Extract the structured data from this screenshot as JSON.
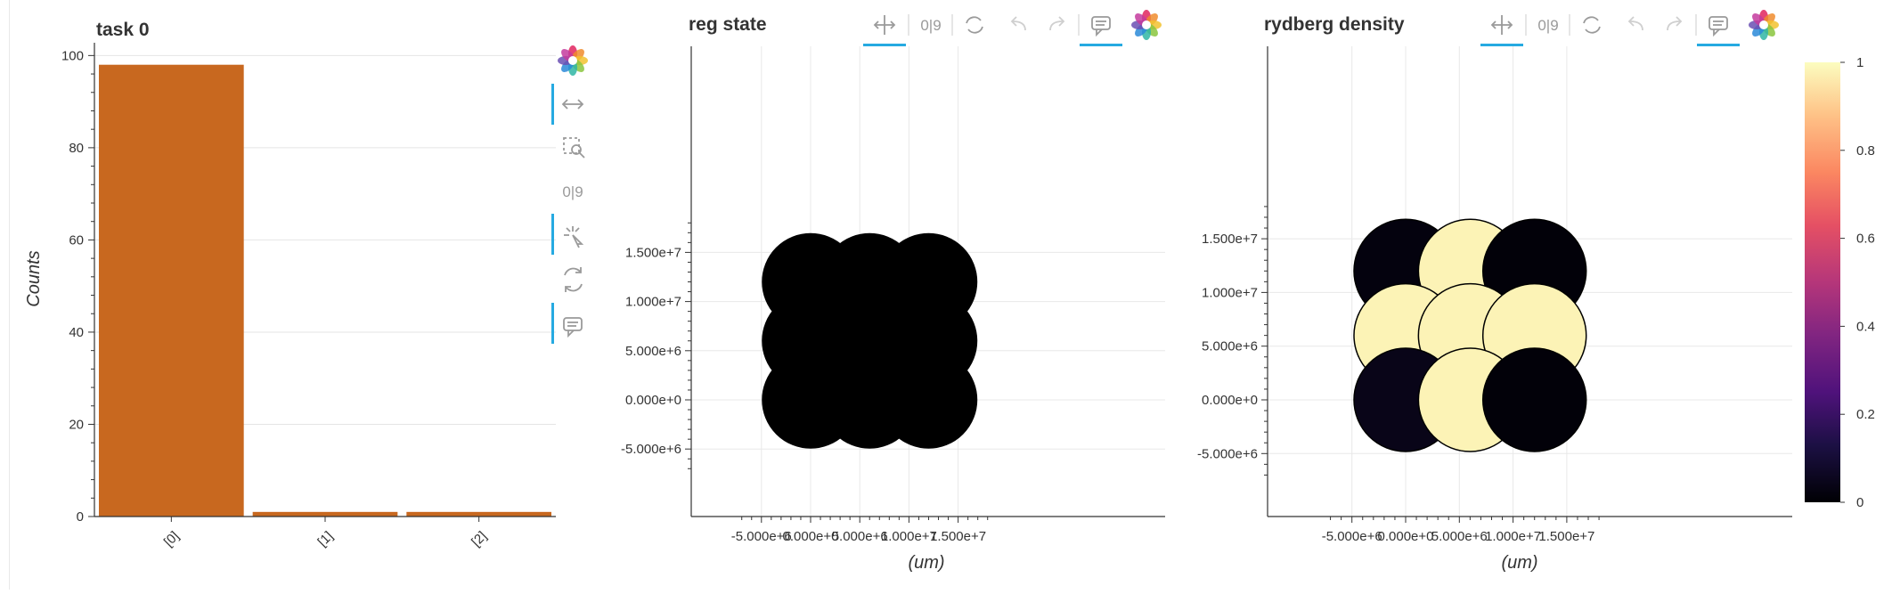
{
  "chart_data": [
    {
      "type": "bar",
      "title": "task 0",
      "ylabel": "Counts",
      "categories": [
        "[0]",
        "[1]",
        "[2]"
      ],
      "values": [
        98,
        1,
        1
      ],
      "ylim": [
        0,
        102
      ],
      "yticks": [
        "0",
        "20",
        "40",
        "60",
        "80",
        "100"
      ],
      "bar_color": "#c8681f",
      "grid": true
    },
    {
      "type": "scatter",
      "title": "reg state",
      "xlabel": "(um)",
      "xticks": [
        "-5.000e+6",
        "0.000e+0",
        "5.000e+6",
        "1.000e+7",
        "1.500e+7"
      ],
      "yticks": [
        "-5.000e+6",
        "0.000e+0",
        "5.000e+6",
        "1.000e+7",
        "1.500e+7"
      ],
      "xlim": [
        -5000000,
        17500000
      ],
      "ylim": [
        -5000000,
        17500000
      ],
      "points": [
        {
          "x": 0,
          "y": 12000000,
          "value": 0
        },
        {
          "x": 6000000,
          "y": 12000000,
          "value": 0
        },
        {
          "x": 12000000,
          "y": 12000000,
          "value": 0
        },
        {
          "x": 0,
          "y": 6000000,
          "value": 0
        },
        {
          "x": 6000000,
          "y": 6000000,
          "value": 0
        },
        {
          "x": 12000000,
          "y": 6000000,
          "value": 0
        },
        {
          "x": 0,
          "y": 0,
          "value": 0
        },
        {
          "x": 6000000,
          "y": 0,
          "value": 0
        },
        {
          "x": 12000000,
          "y": 0,
          "value": 0
        }
      ],
      "point_color": "#000000",
      "grid": true
    },
    {
      "type": "scatter",
      "title": "rydberg density",
      "xlabel": "(um)",
      "xticks": [
        "-5.000e+6",
        "0.000e+0",
        "5.000e+6",
        "1.000e+7",
        "1.500e+7"
      ],
      "yticks": [
        "-5.000e+6",
        "0.000e+0",
        "5.000e+6",
        "1.000e+7",
        "1.500e+7"
      ],
      "xlim": [
        -5000000,
        17500000
      ],
      "ylim": [
        -5000000,
        17500000
      ],
      "points": [
        {
          "x": 0,
          "y": 12000000,
          "value": 0.02
        },
        {
          "x": 6000000,
          "y": 12000000,
          "value": 0.98
        },
        {
          "x": 12000000,
          "y": 12000000,
          "value": 0.01
        },
        {
          "x": 0,
          "y": 6000000,
          "value": 0.98
        },
        {
          "x": 6000000,
          "y": 6000000,
          "value": 0.98
        },
        {
          "x": 12000000,
          "y": 6000000,
          "value": 0.98
        },
        {
          "x": 0,
          "y": 0,
          "value": 0.04
        },
        {
          "x": 6000000,
          "y": 0,
          "value": 0.98
        },
        {
          "x": 12000000,
          "y": 0,
          "value": 0.01
        }
      ],
      "colormap": "magma",
      "colorbar": {
        "min": 0,
        "max": 1,
        "ticks": [
          "0",
          "0.2",
          "0.4",
          "0.6",
          "0.8",
          "1"
        ]
      },
      "grid": true
    }
  ],
  "toolbar": {
    "hover_text": "0|9",
    "icons": [
      "bokeh-logo-icon",
      "pan-icon",
      "box-zoom-icon",
      "wheel-zoom-icon",
      "reset-icon",
      "undo-icon",
      "redo-icon",
      "hover-icon"
    ]
  }
}
